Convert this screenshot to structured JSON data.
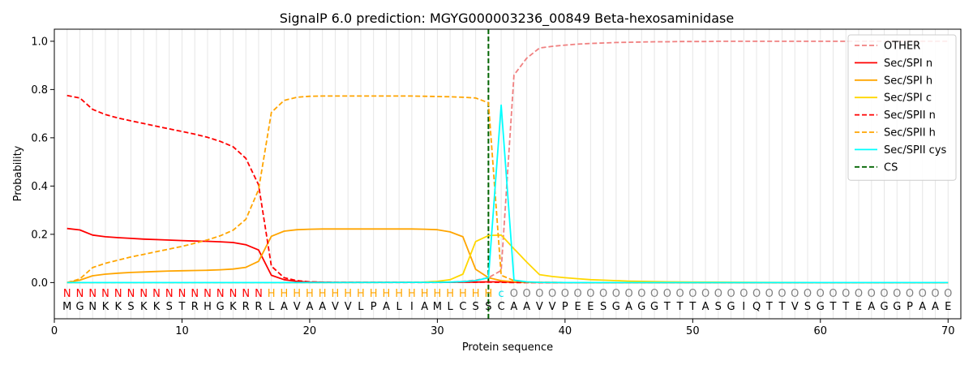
{
  "chart_data": {
    "type": "line",
    "title": "SignalP 6.0 prediction: MGYG000003236_00849 Beta-hexosaminidase",
    "xlabel": "Protein sequence",
    "ylabel": "Probability",
    "xlim": [
      0,
      71
    ],
    "ylim": [
      -0.15,
      1.05
    ],
    "xticks": [
      0,
      10,
      20,
      30,
      40,
      50,
      60,
      70
    ],
    "yticks": [
      0.0,
      0.2,
      0.4,
      0.6,
      0.8,
      1.0
    ],
    "ytick_labels": [
      "0.0",
      "0.2",
      "0.4",
      "0.6",
      "0.8",
      "1.0"
    ],
    "grid": "vertical lines at each residue",
    "legend_position": "top-right",
    "sequence": "MGNKKSKKSTRHGKRRLAVAAVVLPALIAMLCSSCAAVVPEESGAGGTTTASGIQTTVSGTTEAGGPAAE",
    "labels": "NNNNNNNNNNNNNNNNHHHHHHHHHHHHHHHHHHcOOOOOOOOOOOOOOOOOOOOOOOOOOOOOOOOOOO",
    "label_colors": {
      "N": "#ff0000",
      "H": "#ffa500",
      "c": "#00e5ee",
      "O": "#808080"
    },
    "cleavage_site": 34,
    "series": [
      {
        "name": "OTHER",
        "color": "#f08080",
        "dash": true,
        "x": [
          1,
          2,
          3,
          4,
          5,
          6,
          7,
          8,
          9,
          10,
          11,
          12,
          13,
          14,
          15,
          16,
          17,
          18,
          19,
          20,
          21,
          22,
          23,
          24,
          25,
          26,
          27,
          28,
          29,
          30,
          31,
          32,
          33,
          34,
          35,
          36,
          37,
          38,
          39,
          40,
          41,
          42,
          43,
          44,
          45,
          46,
          47,
          48,
          49,
          50,
          51,
          52,
          53,
          54,
          55,
          56,
          57,
          58,
          59,
          60,
          61,
          62,
          63,
          64,
          65,
          66,
          67,
          68,
          69,
          70
        ],
        "values": [
          0.0,
          0.0,
          0.0,
          0.0,
          0.0,
          0.0,
          0.0,
          0.0,
          0.0,
          0.0,
          0.0,
          0.0,
          0.0,
          0.0,
          0.0,
          0.0,
          0.0,
          0.0,
          0.0,
          0.0,
          0.0,
          0.0,
          0.0,
          0.0,
          0.0,
          0.0,
          0.0,
          0.0,
          0.0,
          0.0,
          0.002,
          0.005,
          0.01,
          0.02,
          0.05,
          0.86,
          0.93,
          0.972,
          0.979,
          0.984,
          0.988,
          0.991,
          0.993,
          0.995,
          0.996,
          0.997,
          0.998,
          0.998,
          0.999,
          0.999,
          0.999,
          1.0,
          1.0,
          1.0,
          1.0,
          1.0,
          1.0,
          1.0,
          1.0,
          1.0,
          1.0,
          1.0,
          1.0,
          1.0,
          1.0,
          1.0,
          1.0,
          1.0,
          1.0,
          1.0
        ]
      },
      {
        "name": "Sec/SPI n",
        "color": "#ff0000",
        "dash": false,
        "x": [
          1,
          2,
          3,
          4,
          5,
          6,
          7,
          8,
          9,
          10,
          11,
          12,
          13,
          14,
          15,
          16,
          17,
          18,
          19,
          20,
          22,
          25,
          30,
          33,
          34,
          35,
          36,
          40,
          50,
          60,
          70
        ],
        "values": [
          0.224,
          0.218,
          0.197,
          0.19,
          0.186,
          0.183,
          0.18,
          0.178,
          0.176,
          0.174,
          0.172,
          0.171,
          0.169,
          0.166,
          0.157,
          0.135,
          0.03,
          0.012,
          0.005,
          0.002,
          0.001,
          0.001,
          0.001,
          0.002,
          0.003,
          0.003,
          0.001,
          0.0,
          0.0,
          0.0,
          0.0
        ]
      },
      {
        "name": "Sec/SPI h",
        "color": "#ffa500",
        "dash": false,
        "x": [
          1,
          2,
          3,
          4,
          5,
          6,
          7,
          8,
          9,
          10,
          11,
          12,
          13,
          14,
          15,
          16,
          17,
          18,
          19,
          20,
          21,
          22,
          23,
          24,
          25,
          26,
          27,
          28,
          29,
          30,
          31,
          32,
          33,
          34,
          35,
          36,
          37,
          40,
          50,
          60,
          70
        ],
        "values": [
          0.0,
          0.01,
          0.028,
          0.035,
          0.039,
          0.042,
          0.044,
          0.046,
          0.048,
          0.049,
          0.05,
          0.051,
          0.053,
          0.056,
          0.063,
          0.088,
          0.192,
          0.213,
          0.219,
          0.221,
          0.222,
          0.222,
          0.222,
          0.222,
          0.222,
          0.222,
          0.222,
          0.222,
          0.221,
          0.219,
          0.21,
          0.19,
          0.055,
          0.02,
          0.008,
          0.003,
          0.001,
          0.0,
          0.0,
          0.0,
          0.0
        ]
      },
      {
        "name": "Sec/SPI c",
        "color": "#ffd700",
        "dash": false,
        "x": [
          1,
          10,
          20,
          28,
          29,
          30,
          31,
          32,
          33,
          34,
          35,
          36,
          37,
          38,
          39,
          40,
          41,
          42,
          43,
          44,
          45,
          46,
          48,
          50,
          55,
          60,
          70
        ],
        "values": [
          0.0,
          0.0,
          0.0,
          0.001,
          0.002,
          0.005,
          0.012,
          0.035,
          0.17,
          0.195,
          0.197,
          0.14,
          0.085,
          0.033,
          0.025,
          0.02,
          0.016,
          0.012,
          0.01,
          0.008,
          0.006,
          0.005,
          0.003,
          0.002,
          0.001,
          0.0,
          0.0
        ]
      },
      {
        "name": "Sec/SPII n",
        "color": "#ff0000",
        "dash": true,
        "x": [
          1,
          2,
          3,
          4,
          5,
          6,
          7,
          8,
          9,
          10,
          11,
          12,
          13,
          14,
          15,
          16,
          17,
          18,
          19,
          20,
          22,
          25,
          30,
          33,
          34,
          35,
          36,
          40,
          50,
          60,
          70
        ],
        "values": [
          0.775,
          0.765,
          0.718,
          0.696,
          0.682,
          0.67,
          0.659,
          0.648,
          0.637,
          0.626,
          0.615,
          0.602,
          0.585,
          0.563,
          0.515,
          0.405,
          0.068,
          0.02,
          0.008,
          0.003,
          0.001,
          0.001,
          0.001,
          0.002,
          0.002,
          0.001,
          0.0,
          0.0,
          0.0,
          0.0,
          0.0
        ]
      },
      {
        "name": "Sec/SPII h",
        "color": "#ffa500",
        "dash": true,
        "x": [
          1,
          2,
          3,
          4,
          5,
          6,
          7,
          8,
          9,
          10,
          11,
          12,
          13,
          14,
          15,
          16,
          17,
          18,
          19,
          20,
          21,
          22,
          23,
          24,
          25,
          26,
          27,
          28,
          29,
          30,
          31,
          32,
          33,
          34,
          35,
          36,
          37,
          40,
          50,
          60,
          70
        ],
        "values": [
          0.0,
          0.015,
          0.062,
          0.08,
          0.093,
          0.106,
          0.117,
          0.128,
          0.139,
          0.15,
          0.163,
          0.177,
          0.194,
          0.217,
          0.262,
          0.385,
          0.705,
          0.755,
          0.768,
          0.772,
          0.773,
          0.773,
          0.773,
          0.773,
          0.773,
          0.773,
          0.773,
          0.773,
          0.772,
          0.771,
          0.77,
          0.768,
          0.765,
          0.745,
          0.03,
          0.008,
          0.002,
          0.0,
          0.0,
          0.0,
          0.0
        ]
      },
      {
        "name": "Sec/SPII cys",
        "color": "#00ffff",
        "dash": false,
        "x": [
          1,
          10,
          20,
          30,
          31,
          32,
          33,
          34,
          35,
          36,
          37,
          38,
          40,
          50,
          60,
          70
        ],
        "values": [
          0.0,
          0.0,
          0.0,
          0.001,
          0.002,
          0.004,
          0.008,
          0.02,
          0.735,
          0.01,
          0.003,
          0.001,
          0.0,
          0.0,
          0.0,
          0.0
        ]
      }
    ],
    "cs_line": {
      "name": "CS",
      "color": "#006400"
    }
  }
}
